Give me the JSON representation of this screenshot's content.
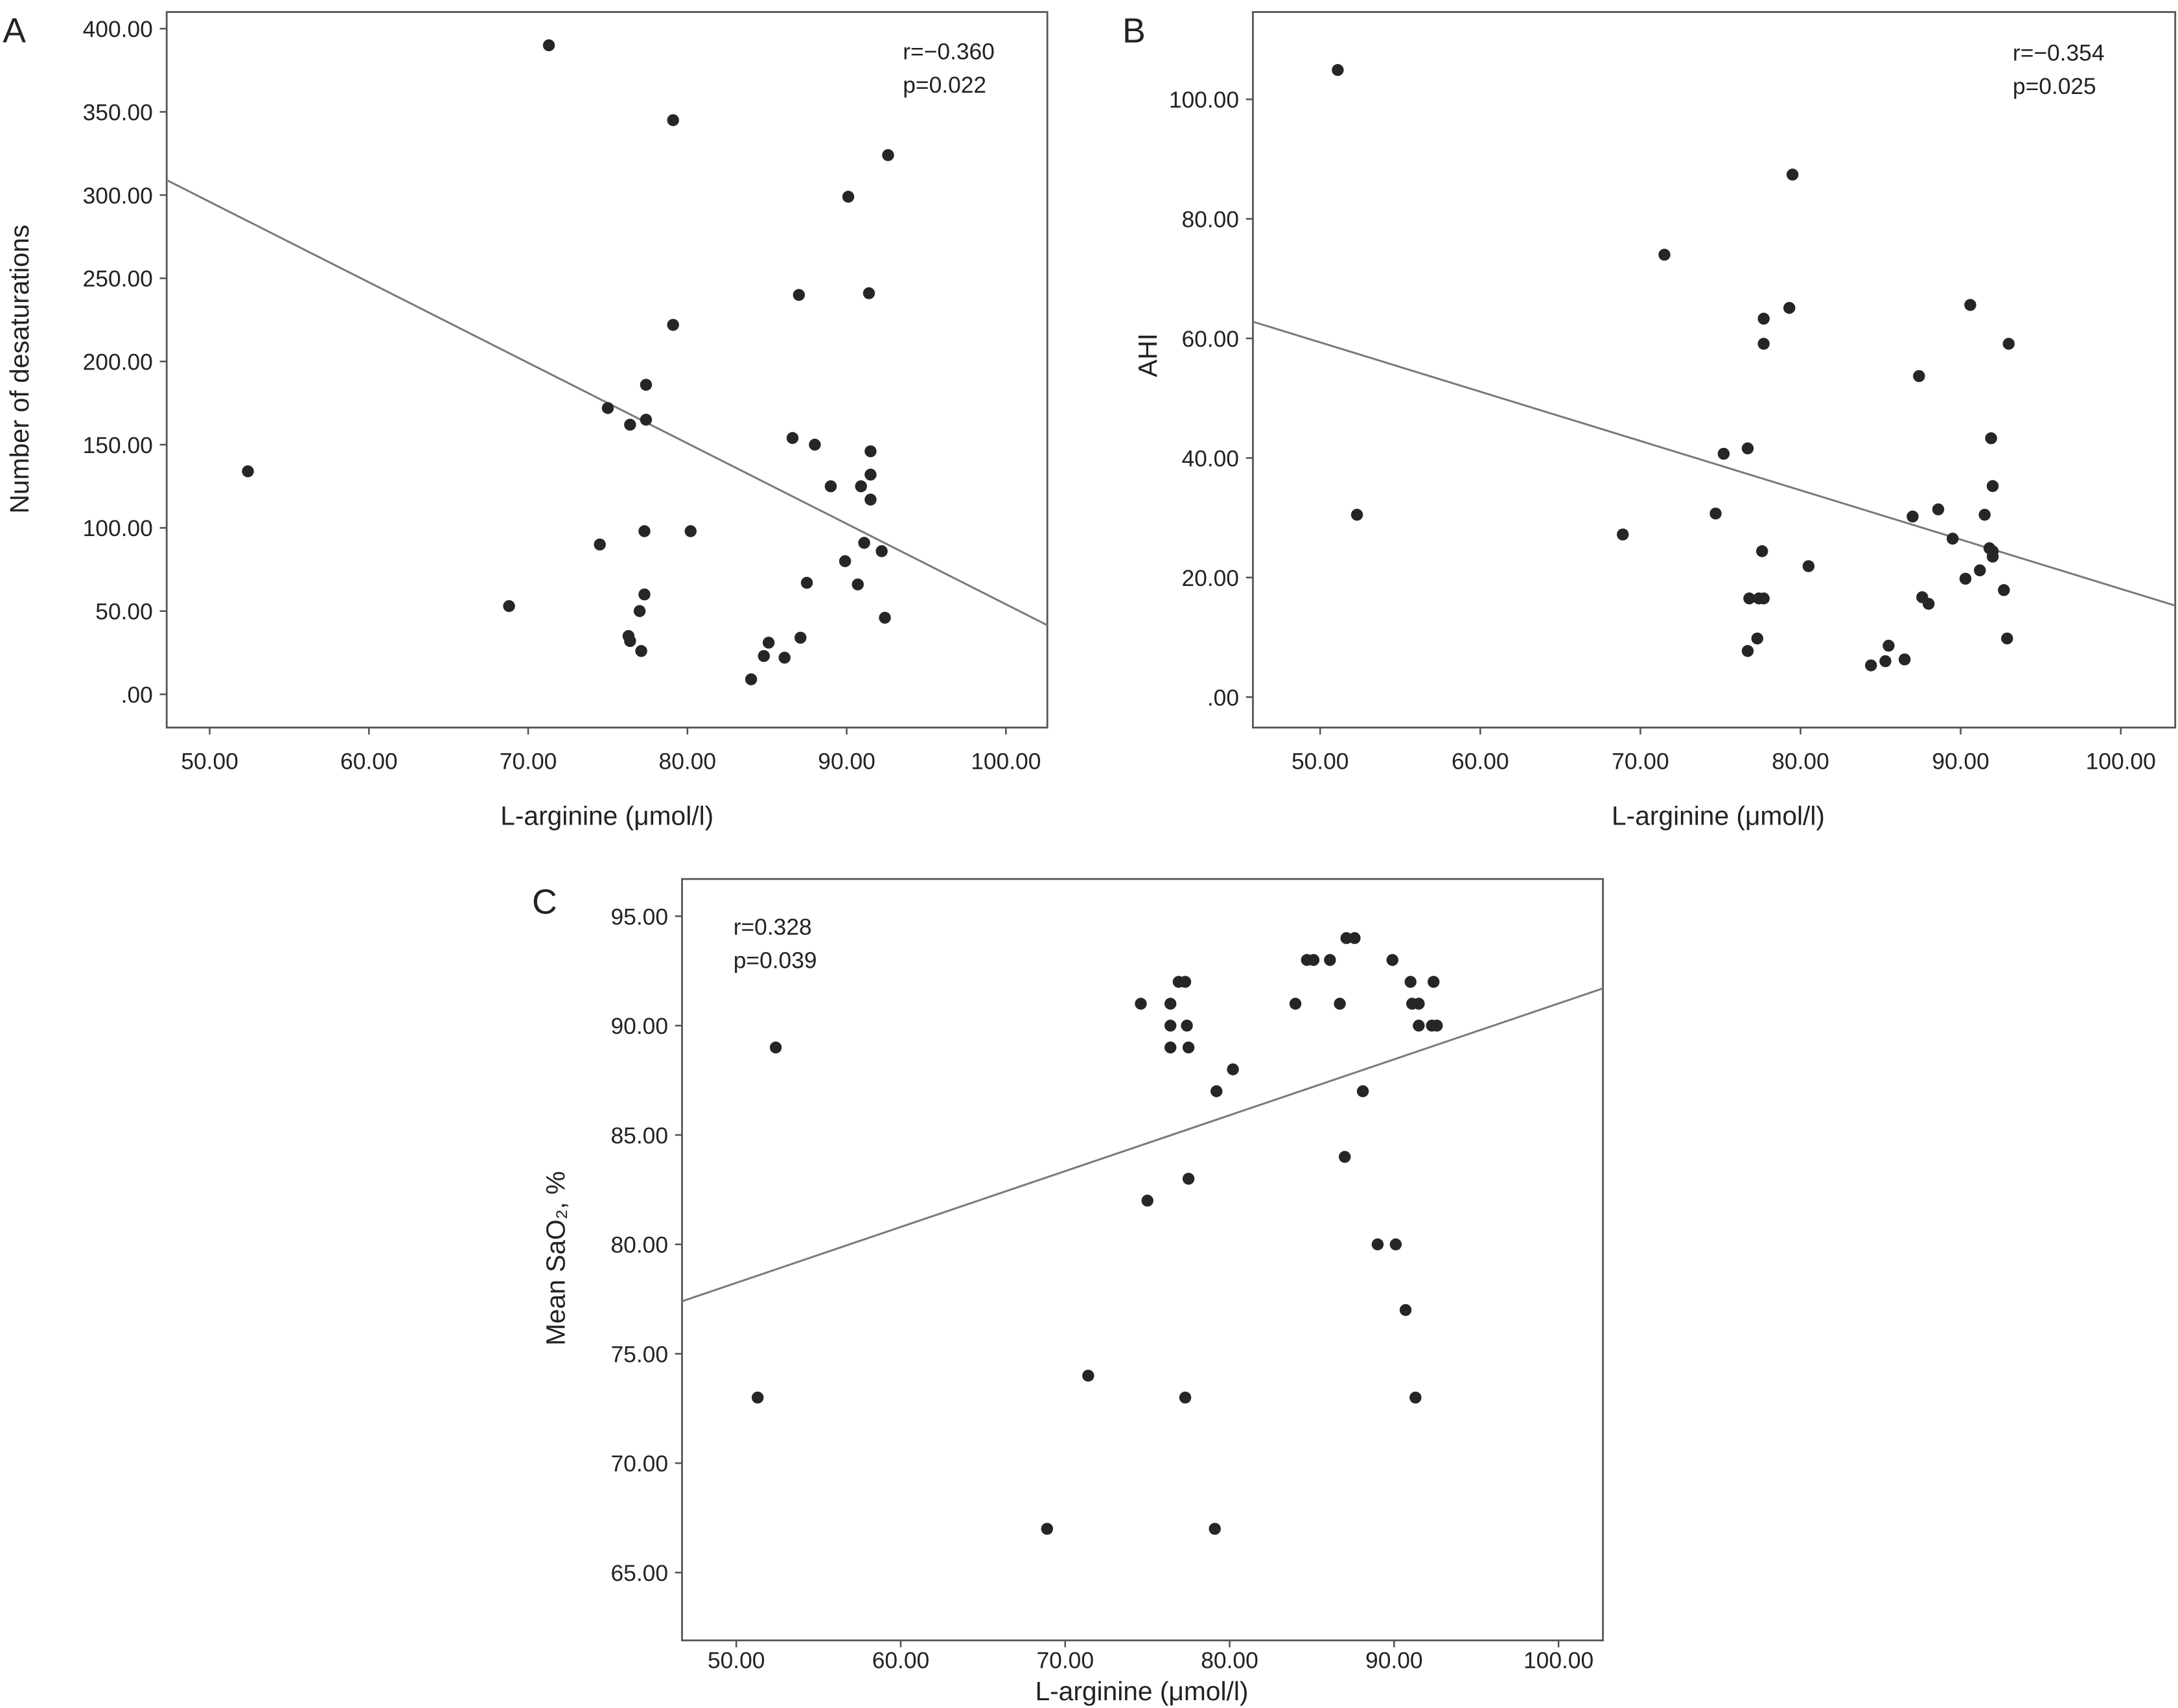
{
  "chart_data": [
    {
      "type": "scatter",
      "panel_label": "A",
      "xlabel": "L-arginine (μmol/l)",
      "ylabel": "Number of desaturations",
      "xticks": [
        "50.00",
        "60.00",
        "70.00",
        "80.00",
        "90.00",
        "100.00"
      ],
      "yticks": [
        ".00",
        "50.00",
        "100.00",
        "150.00",
        "200.00",
        "250.00",
        "300.00",
        "350.00",
        "400.00"
      ],
      "xlim": [
        47.3,
        102.6
      ],
      "ylim": [
        -20,
        410
      ],
      "annotations": [
        "r=−0.360",
        "p=0.022"
      ],
      "grid": false,
      "marker_color": "#262626",
      "line_color": "#7a7a7a",
      "fit_line": {
        "x": [
          47.3,
          102.6
        ],
        "y": [
          309,
          41.5
        ]
      },
      "points": [
        [
          52.4,
          134
        ],
        [
          68.8,
          53
        ],
        [
          71.3,
          390
        ],
        [
          74.5,
          90
        ],
        [
          75.0,
          172
        ],
        [
          76.4,
          162
        ],
        [
          77.4,
          186
        ],
        [
          77.4,
          165
        ],
        [
          76.3,
          35
        ],
        [
          76.4,
          32
        ],
        [
          77.0,
          50
        ],
        [
          77.1,
          26
        ],
        [
          77.3,
          60
        ],
        [
          77.3,
          98
        ],
        [
          79.1,
          345
        ],
        [
          79.1,
          222
        ],
        [
          80.2,
          98
        ],
        [
          84.0,
          9
        ],
        [
          84.8,
          23
        ],
        [
          85.1,
          31
        ],
        [
          86.1,
          22
        ],
        [
          86.6,
          154
        ],
        [
          87.0,
          240
        ],
        [
          87.1,
          34
        ],
        [
          87.5,
          67
        ],
        [
          88.0,
          150
        ],
        [
          89.0,
          125
        ],
        [
          89.9,
          80
        ],
        [
          90.1,
          299
        ],
        [
          90.7,
          66
        ],
        [
          90.9,
          125
        ],
        [
          91.1,
          91
        ],
        [
          91.4,
          241
        ],
        [
          91.5,
          146
        ],
        [
          91.5,
          132
        ],
        [
          91.5,
          117
        ],
        [
          92.2,
          86
        ],
        [
          92.4,
          46
        ],
        [
          92.6,
          324
        ]
      ]
    },
    {
      "type": "scatter",
      "panel_label": "B",
      "xlabel": "L-arginine (μmol/l)",
      "ylabel": "AHI",
      "xticks": [
        "50.00",
        "60.00",
        "70.00",
        "80.00",
        "90.00",
        "100.00"
      ],
      "yticks": [
        ".00",
        "20.00",
        "40.00",
        "60.00",
        "80.00",
        "100.00"
      ],
      "xlim": [
        45.8,
        103.4
      ],
      "ylim": [
        -5.1,
        114.6
      ],
      "annotations": [
        "r=−0.354",
        "p=0.025"
      ],
      "grid": false,
      "marker_color": "#262626",
      "line_color": "#7a7a7a",
      "fit_line": {
        "x": [
          45.8,
          103.4
        ],
        "y": [
          62.8,
          15.3
        ]
      },
      "points": [
        [
          51.1,
          104.9
        ],
        [
          52.3,
          30.5
        ],
        [
          68.9,
          27.2
        ],
        [
          71.5,
          74
        ],
        [
          74.7,
          30.7
        ],
        [
          75.2,
          40.7
        ],
        [
          76.7,
          41.6
        ],
        [
          76.7,
          7.7
        ],
        [
          76.8,
          16.5
        ],
        [
          77.3,
          9.8
        ],
        [
          77.4,
          16.5
        ],
        [
          77.7,
          16.5
        ],
        [
          77.6,
          24.4
        ],
        [
          77.7,
          63.3
        ],
        [
          77.7,
          59.1
        ],
        [
          79.3,
          65.1
        ],
        [
          79.5,
          87.4
        ],
        [
          80.5,
          21.9
        ],
        [
          84.4,
          5.3
        ],
        [
          85.3,
          6.0
        ],
        [
          85.5,
          8.6
        ],
        [
          86.5,
          6.3
        ],
        [
          87.0,
          30.2
        ],
        [
          87.4,
          53.7
        ],
        [
          87.6,
          16.7
        ],
        [
          88.0,
          15.6
        ],
        [
          88.6,
          31.4
        ],
        [
          89.5,
          26.5
        ],
        [
          90.3,
          19.8
        ],
        [
          90.6,
          65.6
        ],
        [
          91.2,
          21.2
        ],
        [
          91.5,
          30.5
        ],
        [
          91.8,
          24.9
        ],
        [
          92.0,
          24.4
        ],
        [
          92.0,
          23.5
        ],
        [
          91.9,
          43.3
        ],
        [
          92.0,
          35.3
        ],
        [
          92.7,
          17.9
        ],
        [
          92.9,
          9.8
        ],
        [
          93.0,
          59.1
        ]
      ]
    },
    {
      "type": "scatter",
      "panel_label": "C",
      "xlabel": "L-arginine (μmol/l)",
      "ylabel": "Mean SaO₂, %",
      "xticks": [
        "50.00",
        "60.00",
        "70.00",
        "80.00",
        "90.00",
        "100.00"
      ],
      "yticks": [
        "65.00",
        "70.00",
        "75.00",
        "80.00",
        "85.00",
        "90.00",
        "95.00"
      ],
      "xlim": [
        46.7,
        102.7
      ],
      "ylim": [
        61.9,
        96.7
      ],
      "annotations": [
        "r=0.328",
        "p=0.039"
      ],
      "grid": false,
      "marker_color": "#262626",
      "line_color": "#7a7a7a",
      "fit_line": {
        "x": [
          46.7,
          102.7
        ],
        "y": [
          77.4,
          91.7
        ]
      },
      "points": [
        [
          51.3,
          73
        ],
        [
          52.4,
          89
        ],
        [
          68.9,
          67
        ],
        [
          71.4,
          74
        ],
        [
          74.6,
          91
        ],
        [
          75.0,
          82
        ],
        [
          76.4,
          91
        ],
        [
          76.4,
          90
        ],
        [
          76.4,
          89
        ],
        [
          76.9,
          92
        ],
        [
          77.3,
          92
        ],
        [
          77.4,
          90
        ],
        [
          77.5,
          89
        ],
        [
          77.5,
          83
        ],
        [
          77.3,
          73
        ],
        [
          79.1,
          67
        ],
        [
          79.2,
          87
        ],
        [
          80.2,
          88
        ],
        [
          84.0,
          91
        ],
        [
          84.7,
          93
        ],
        [
          85.1,
          93
        ],
        [
          86.1,
          93
        ],
        [
          86.7,
          91
        ],
        [
          87.0,
          84
        ],
        [
          87.1,
          94
        ],
        [
          87.6,
          94
        ],
        [
          88.1,
          87
        ],
        [
          89.0,
          80
        ],
        [
          89.9,
          93
        ],
        [
          90.1,
          80
        ],
        [
          90.7,
          77
        ],
        [
          91.0,
          92
        ],
        [
          91.1,
          91
        ],
        [
          91.5,
          91
        ],
        [
          91.3,
          73
        ],
        [
          91.5,
          90
        ],
        [
          92.4,
          92
        ],
        [
          92.3,
          90
        ],
        [
          92.6,
          90
        ]
      ]
    }
  ]
}
